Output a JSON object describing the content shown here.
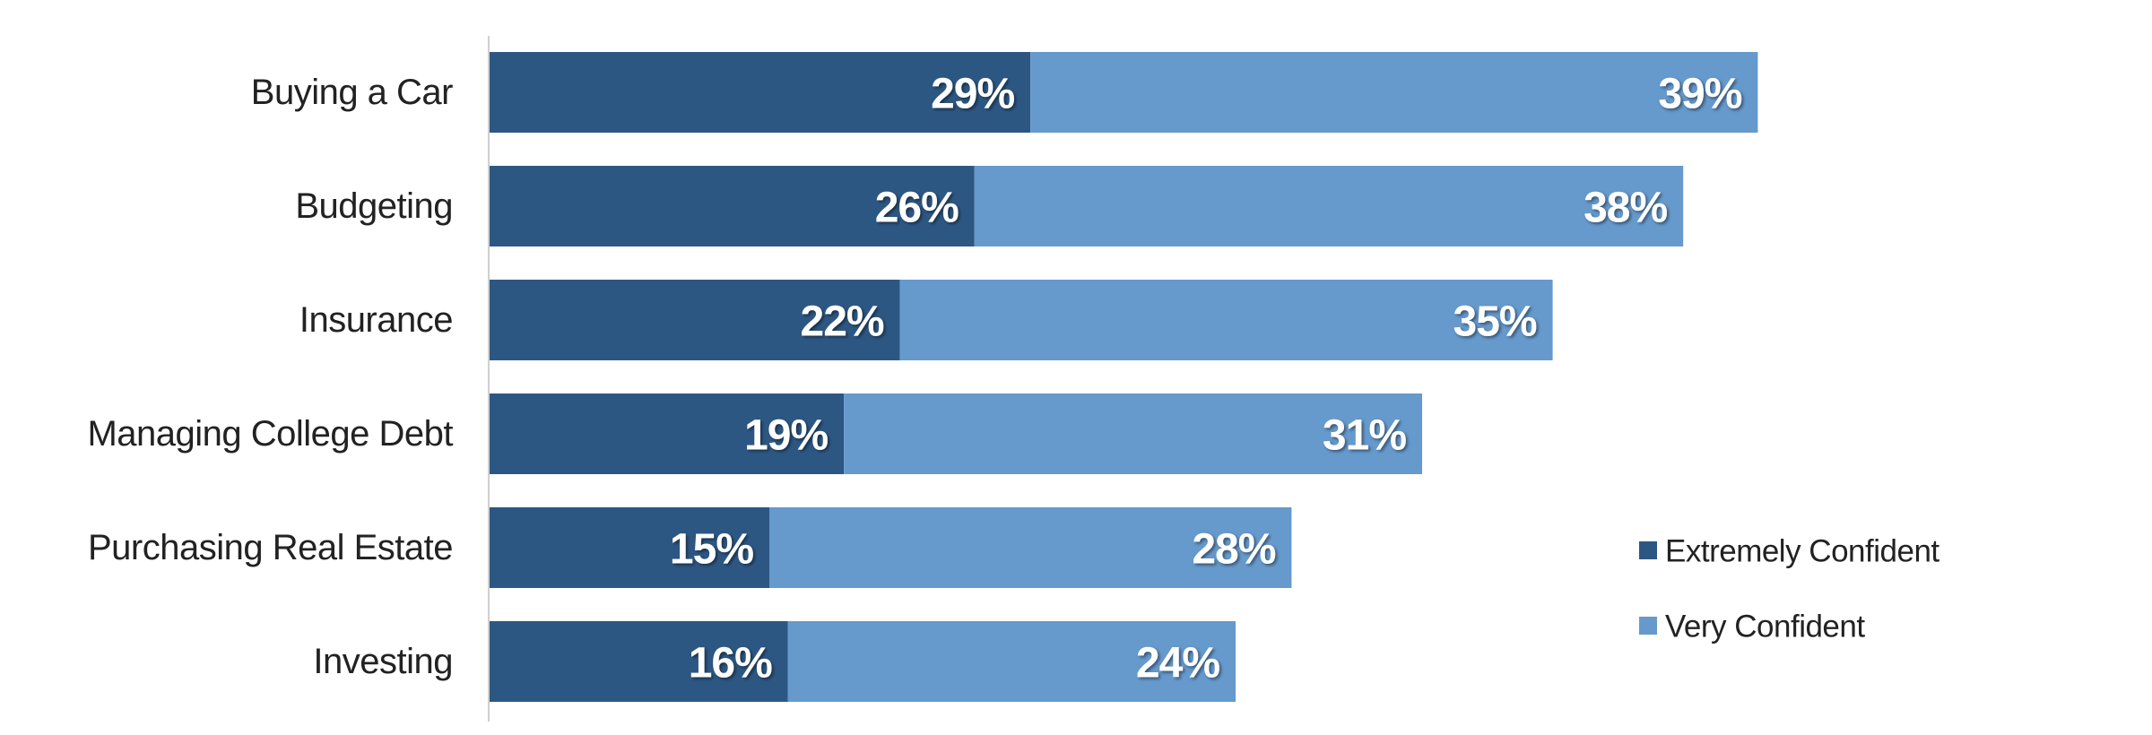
{
  "chart_data": {
    "type": "bar",
    "orientation": "horizontal",
    "stacked": true,
    "categories": [
      "Buying a Car",
      "Budgeting",
      "Insurance",
      "Managing College Debt",
      "Purchasing Real Estate",
      "Investing"
    ],
    "series": [
      {
        "name": "Extremely Confident",
        "values": [
          29,
          26,
          22,
          19,
          15,
          16
        ],
        "color": "#2d5783",
        "labels": [
          "29%",
          "26%",
          "22%",
          "19%",
          "15%",
          "16%"
        ]
      },
      {
        "name": "Very Confident",
        "values": [
          39,
          38,
          35,
          31,
          28,
          24
        ],
        "color": "#6699cc",
        "labels": [
          "39%",
          "38%",
          "35%",
          "31%",
          "28%",
          "24%"
        ]
      }
    ],
    "value_unit": "%",
    "xlim": [
      0,
      70
    ],
    "grid": false,
    "legend_position": "right"
  }
}
